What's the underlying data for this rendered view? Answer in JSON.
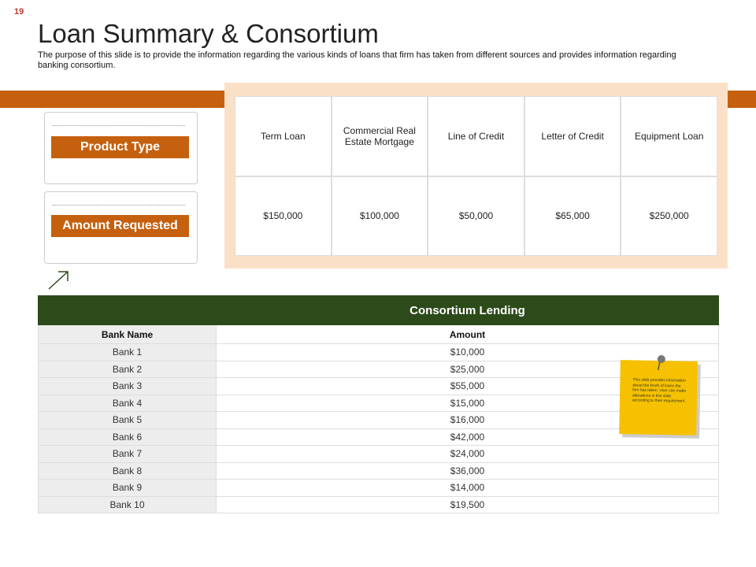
{
  "slide_number": "19",
  "header": {
    "title": "Loan Summary & Consortium",
    "subtitle": "The purpose of this slide is to provide the information regarding the various kinds of loans that firm has taken from different sources and provides information regarding banking consortium."
  },
  "labels": [
    "Product Type",
    "Amount Requested"
  ],
  "loan_table": {
    "headers": [
      "Term Loan",
      "Commercial Real Estate Mortgage",
      "Line of Credit",
      "Letter of Credit",
      "Equipment Loan"
    ],
    "amounts": [
      "$150,000",
      "$100,000",
      "$50,000",
      "$65,000",
      "$250,000"
    ]
  },
  "consortium": {
    "title": "Consortium Lending",
    "columns": [
      "Bank Name",
      "Amount"
    ],
    "rows": [
      [
        "Bank 1",
        "$10,000"
      ],
      [
        "Bank 2",
        "$25,000"
      ],
      [
        "Bank 3",
        "$55,000"
      ],
      [
        "Bank 4",
        "$15,000"
      ],
      [
        "Bank 5",
        "$16,000"
      ],
      [
        "Bank 6",
        "$42,000"
      ],
      [
        "Bank 7",
        "$24,000"
      ],
      [
        "Bank 8",
        "$36,000"
      ],
      [
        "Bank 9",
        "$14,000"
      ],
      [
        "Bank 10",
        "$19,500"
      ]
    ]
  },
  "sticky_note": {
    "text": "This slide provides information about the kinds of loans the firm has taken. User can make alterations in this slide according to their requirement."
  }
}
